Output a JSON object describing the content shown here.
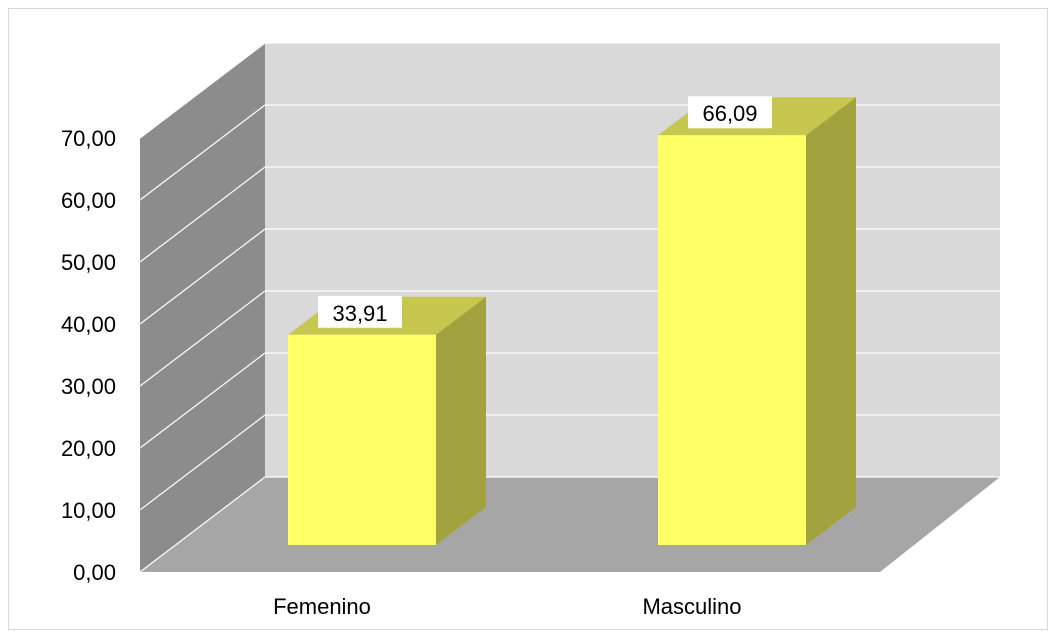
{
  "chart_data": {
    "type": "bar",
    "style": "3d-column",
    "categories": [
      "Femenino",
      "Masculino"
    ],
    "values": [
      33.91,
      66.09
    ],
    "data_labels": [
      "33,91",
      "66,09"
    ],
    "ylim": [
      0,
      70
    ],
    "yticks": [
      {
        "value": 0,
        "label": "0,00"
      },
      {
        "value": 10,
        "label": "10,00"
      },
      {
        "value": 20,
        "label": "20,00"
      },
      {
        "value": 30,
        "label": "30,00"
      },
      {
        "value": 40,
        "label": "40,00"
      },
      {
        "value": 50,
        "label": "50,00"
      },
      {
        "value": 60,
        "label": "60,00"
      },
      {
        "value": 70,
        "label": "70,00"
      }
    ],
    "grid": true,
    "legend": "none",
    "colors": {
      "bar_front": "#FFFF66",
      "bar_top": "#C7C750",
      "bar_side": "#A2A23F",
      "back_wall": "#D9D9D9",
      "side_wall": "#8C8C8C",
      "floor": "#A6A6A6",
      "grid": "#FFFFFF"
    }
  }
}
